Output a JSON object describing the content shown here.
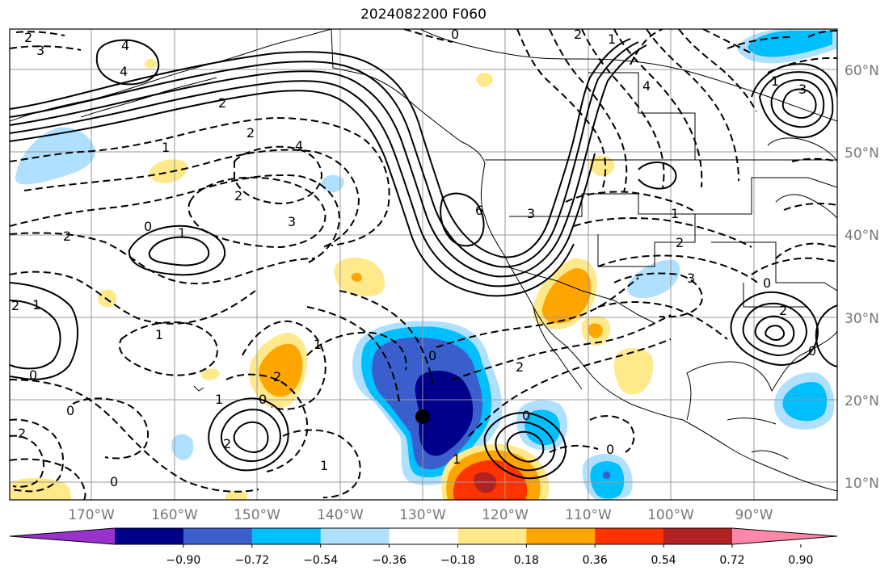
{
  "title": "2024082200 F060",
  "lat_labels": [
    "60°N",
    "50°N",
    "40°N",
    "30°N",
    "20°N",
    "10°N"
  ],
  "lon_labels": [
    "170°W",
    "160°W",
    "150°W",
    "140°W",
    "130°W",
    "120°W",
    "110°W",
    "100°W",
    "90°W"
  ],
  "colorbar": {
    "colors": [
      "#9932cc",
      "#00008b",
      "#3a5fcd",
      "#00bfff",
      "#b0e0ff",
      "#ffffff",
      "#ffe98a",
      "#ffa500",
      "#ff3300",
      "#b22222",
      "#ff88aa"
    ],
    "tick_labels": [
      "−0.90",
      "−0.72",
      "−0.54",
      "−0.36",
      "−0.18",
      "0.18",
      "0.36",
      "0.54",
      "0.72",
      "0.90"
    ]
  },
  "contour_labels": [
    {
      "text": "2"
    },
    {
      "text": "3"
    },
    {
      "text": "4"
    },
    {
      "text": "0"
    },
    {
      "text": "1"
    },
    {
      "text": "2"
    },
    {
      "text": "4"
    },
    {
      "text": "2"
    },
    {
      "text": "3"
    },
    {
      "text": "2"
    },
    {
      "text": "0"
    },
    {
      "text": "1"
    },
    {
      "text": "1"
    },
    {
      "text": "2"
    },
    {
      "text": "0"
    },
    {
      "text": "2"
    },
    {
      "text": "1"
    },
    {
      "text": "1"
    },
    {
      "text": "2"
    },
    {
      "text": "0"
    },
    {
      "text": "0"
    },
    {
      "text": "4"
    },
    {
      "text": "6"
    },
    {
      "text": "3"
    },
    {
      "text": "2"
    },
    {
      "text": "3"
    },
    {
      "text": "1"
    },
    {
      "text": "0"
    },
    {
      "text": "1"
    },
    {
      "text": "2"
    },
    {
      "text": "1"
    },
    {
      "text": "0"
    },
    {
      "text": "2"
    },
    {
      "text": "0"
    },
    {
      "text": "2"
    },
    {
      "text": "0"
    },
    {
      "text": "1"
    },
    {
      "text": "3"
    },
    {
      "text": "1"
    },
    {
      "text": "0"
    },
    {
      "text": "4"
    },
    {
      "text": "2"
    },
    {
      "text": "2"
    },
    {
      "text": "0"
    },
    {
      "text": "1"
    }
  ]
}
